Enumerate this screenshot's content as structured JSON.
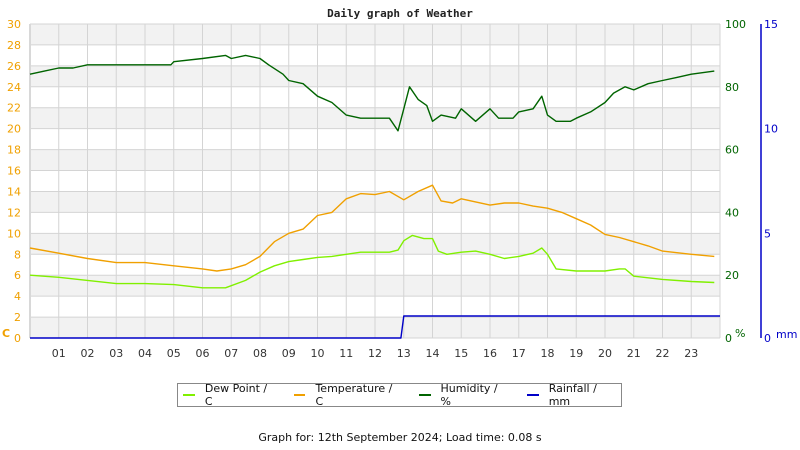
{
  "chart_data": {
    "type": "line",
    "title": "Daily graph of Weather",
    "xlabel": "",
    "x_ticks": [
      "01",
      "02",
      "03",
      "04",
      "05",
      "06",
      "07",
      "08",
      "09",
      "10",
      "11",
      "12",
      "13",
      "14",
      "15",
      "16",
      "17",
      "18",
      "19",
      "20",
      "21",
      "22",
      "23"
    ],
    "xlim": [
      0,
      24
    ],
    "axes": {
      "left": {
        "unit": "C",
        "range": [
          0,
          30
        ],
        "ticks": [
          0,
          2,
          4,
          6,
          8,
          10,
          12,
          14,
          16,
          18,
          20,
          22,
          24,
          26,
          28,
          30
        ],
        "color": "#f0a000"
      },
      "right1": {
        "unit": "%",
        "range": [
          0,
          100
        ],
        "ticks": [
          0,
          20,
          40,
          60,
          80,
          100
        ],
        "color": "#006400"
      },
      "right2": {
        "unit": "mm",
        "range": [
          0,
          15
        ],
        "ticks": [
          0,
          5,
          10,
          15
        ],
        "color": "#0000c8"
      }
    },
    "grid": true,
    "legend_position": "bottom",
    "series": [
      {
        "name": "Dew Point / C",
        "axis": "left",
        "color": "#80f000",
        "x": [
          0,
          1,
          2,
          3,
          4,
          5,
          6,
          6.8,
          7.5,
          8,
          8.5,
          9,
          9.5,
          10,
          10.5,
          11,
          11.5,
          12,
          12.5,
          12.8,
          13,
          13.3,
          13.7,
          14,
          14.2,
          14.5,
          15,
          15.5,
          16,
          16.5,
          17,
          17.5,
          17.8,
          18,
          18.3,
          19,
          19.5,
          20,
          20.5,
          20.7,
          21,
          22,
          23,
          23.8
        ],
        "values": [
          6.0,
          5.8,
          5.5,
          5.2,
          5.2,
          5.1,
          4.8,
          4.8,
          5.5,
          6.3,
          6.9,
          7.3,
          7.5,
          7.7,
          7.8,
          8.0,
          8.2,
          8.2,
          8.2,
          8.4,
          9.3,
          9.8,
          9.5,
          9.5,
          8.3,
          8.0,
          8.2,
          8.3,
          8.0,
          7.6,
          7.8,
          8.1,
          8.6,
          8.0,
          6.6,
          6.4,
          6.4,
          6.4,
          6.6,
          6.6,
          5.9,
          5.6,
          5.4,
          5.3
        ]
      },
      {
        "name": "Temperature / C",
        "axis": "left",
        "color": "#f0a000",
        "x": [
          0,
          1,
          2,
          3,
          4,
          5,
          6,
          6.5,
          7,
          7.5,
          8,
          8.5,
          9,
          9.5,
          10,
          10.5,
          11,
          11.5,
          12,
          12.5,
          13,
          13.5,
          14,
          14.3,
          14.7,
          15,
          15.5,
          16,
          16.5,
          17,
          17.5,
          18,
          18.5,
          19,
          19.5,
          20,
          20.5,
          21,
          21.5,
          22,
          23,
          23.8
        ],
        "values": [
          8.6,
          8.1,
          7.6,
          7.2,
          7.2,
          6.9,
          6.6,
          6.4,
          6.6,
          7.0,
          7.8,
          9.2,
          10.0,
          10.4,
          11.7,
          12.0,
          13.3,
          13.8,
          13.7,
          14.0,
          13.2,
          14.0,
          14.6,
          13.1,
          12.9,
          13.3,
          13.0,
          12.7,
          12.9,
          12.9,
          12.6,
          12.4,
          12.0,
          11.4,
          10.8,
          9.9,
          9.6,
          9.2,
          8.8,
          8.3,
          8.0,
          7.8
        ],
        "unit_note": ""
      },
      {
        "name": "Humidity / %",
        "axis": "right1",
        "color": "#006400",
        "x": [
          0,
          0.5,
          1,
          1.5,
          2,
          3,
          4,
          4.9,
          5,
          6,
          6.8,
          7,
          7.5,
          8,
          8.3,
          8.8,
          9,
          9.5,
          10,
          10.5,
          11,
          11.5,
          12,
          12.5,
          12.8,
          13,
          13.2,
          13.5,
          13.8,
          14,
          14.3,
          14.8,
          15,
          15.5,
          16,
          16.3,
          16.8,
          17,
          17.5,
          17.8,
          18,
          18.3,
          18.8,
          19,
          19.5,
          20,
          20.3,
          20.7,
          21,
          21.5,
          22,
          22.5,
          23,
          23.8
        ],
        "values": [
          84,
          85,
          86,
          86,
          87,
          87,
          87,
          87,
          88,
          89,
          90,
          89,
          90,
          89,
          87,
          84,
          82,
          81,
          77,
          75,
          71,
          70,
          70,
          70,
          66,
          73,
          80,
          76,
          74,
          69,
          71,
          70,
          73,
          69,
          73,
          70,
          70,
          72,
          73,
          77,
          71,
          69,
          69,
          70,
          72,
          75,
          78,
          80,
          79,
          81,
          82,
          83,
          84,
          85
        ]
      },
      {
        "name": "Rainfall / mm",
        "axis": "right2",
        "color": "#0000c8",
        "x": [
          0,
          12.9,
          13.0,
          24
        ],
        "values": [
          0,
          0,
          1.05,
          1.05
        ]
      }
    ]
  },
  "legend": {
    "items": [
      {
        "label": "Dew Point / C",
        "color": "#80f000"
      },
      {
        "label": "Temperature / C",
        "color": "#f0a000"
      },
      {
        "label": "Humidity / %",
        "color": "#006400"
      },
      {
        "label": "Rainfall / mm",
        "color": "#0000c8"
      }
    ]
  },
  "footer": {
    "text": "Graph for: 12th September 2024; Load time: 0.08 s"
  }
}
